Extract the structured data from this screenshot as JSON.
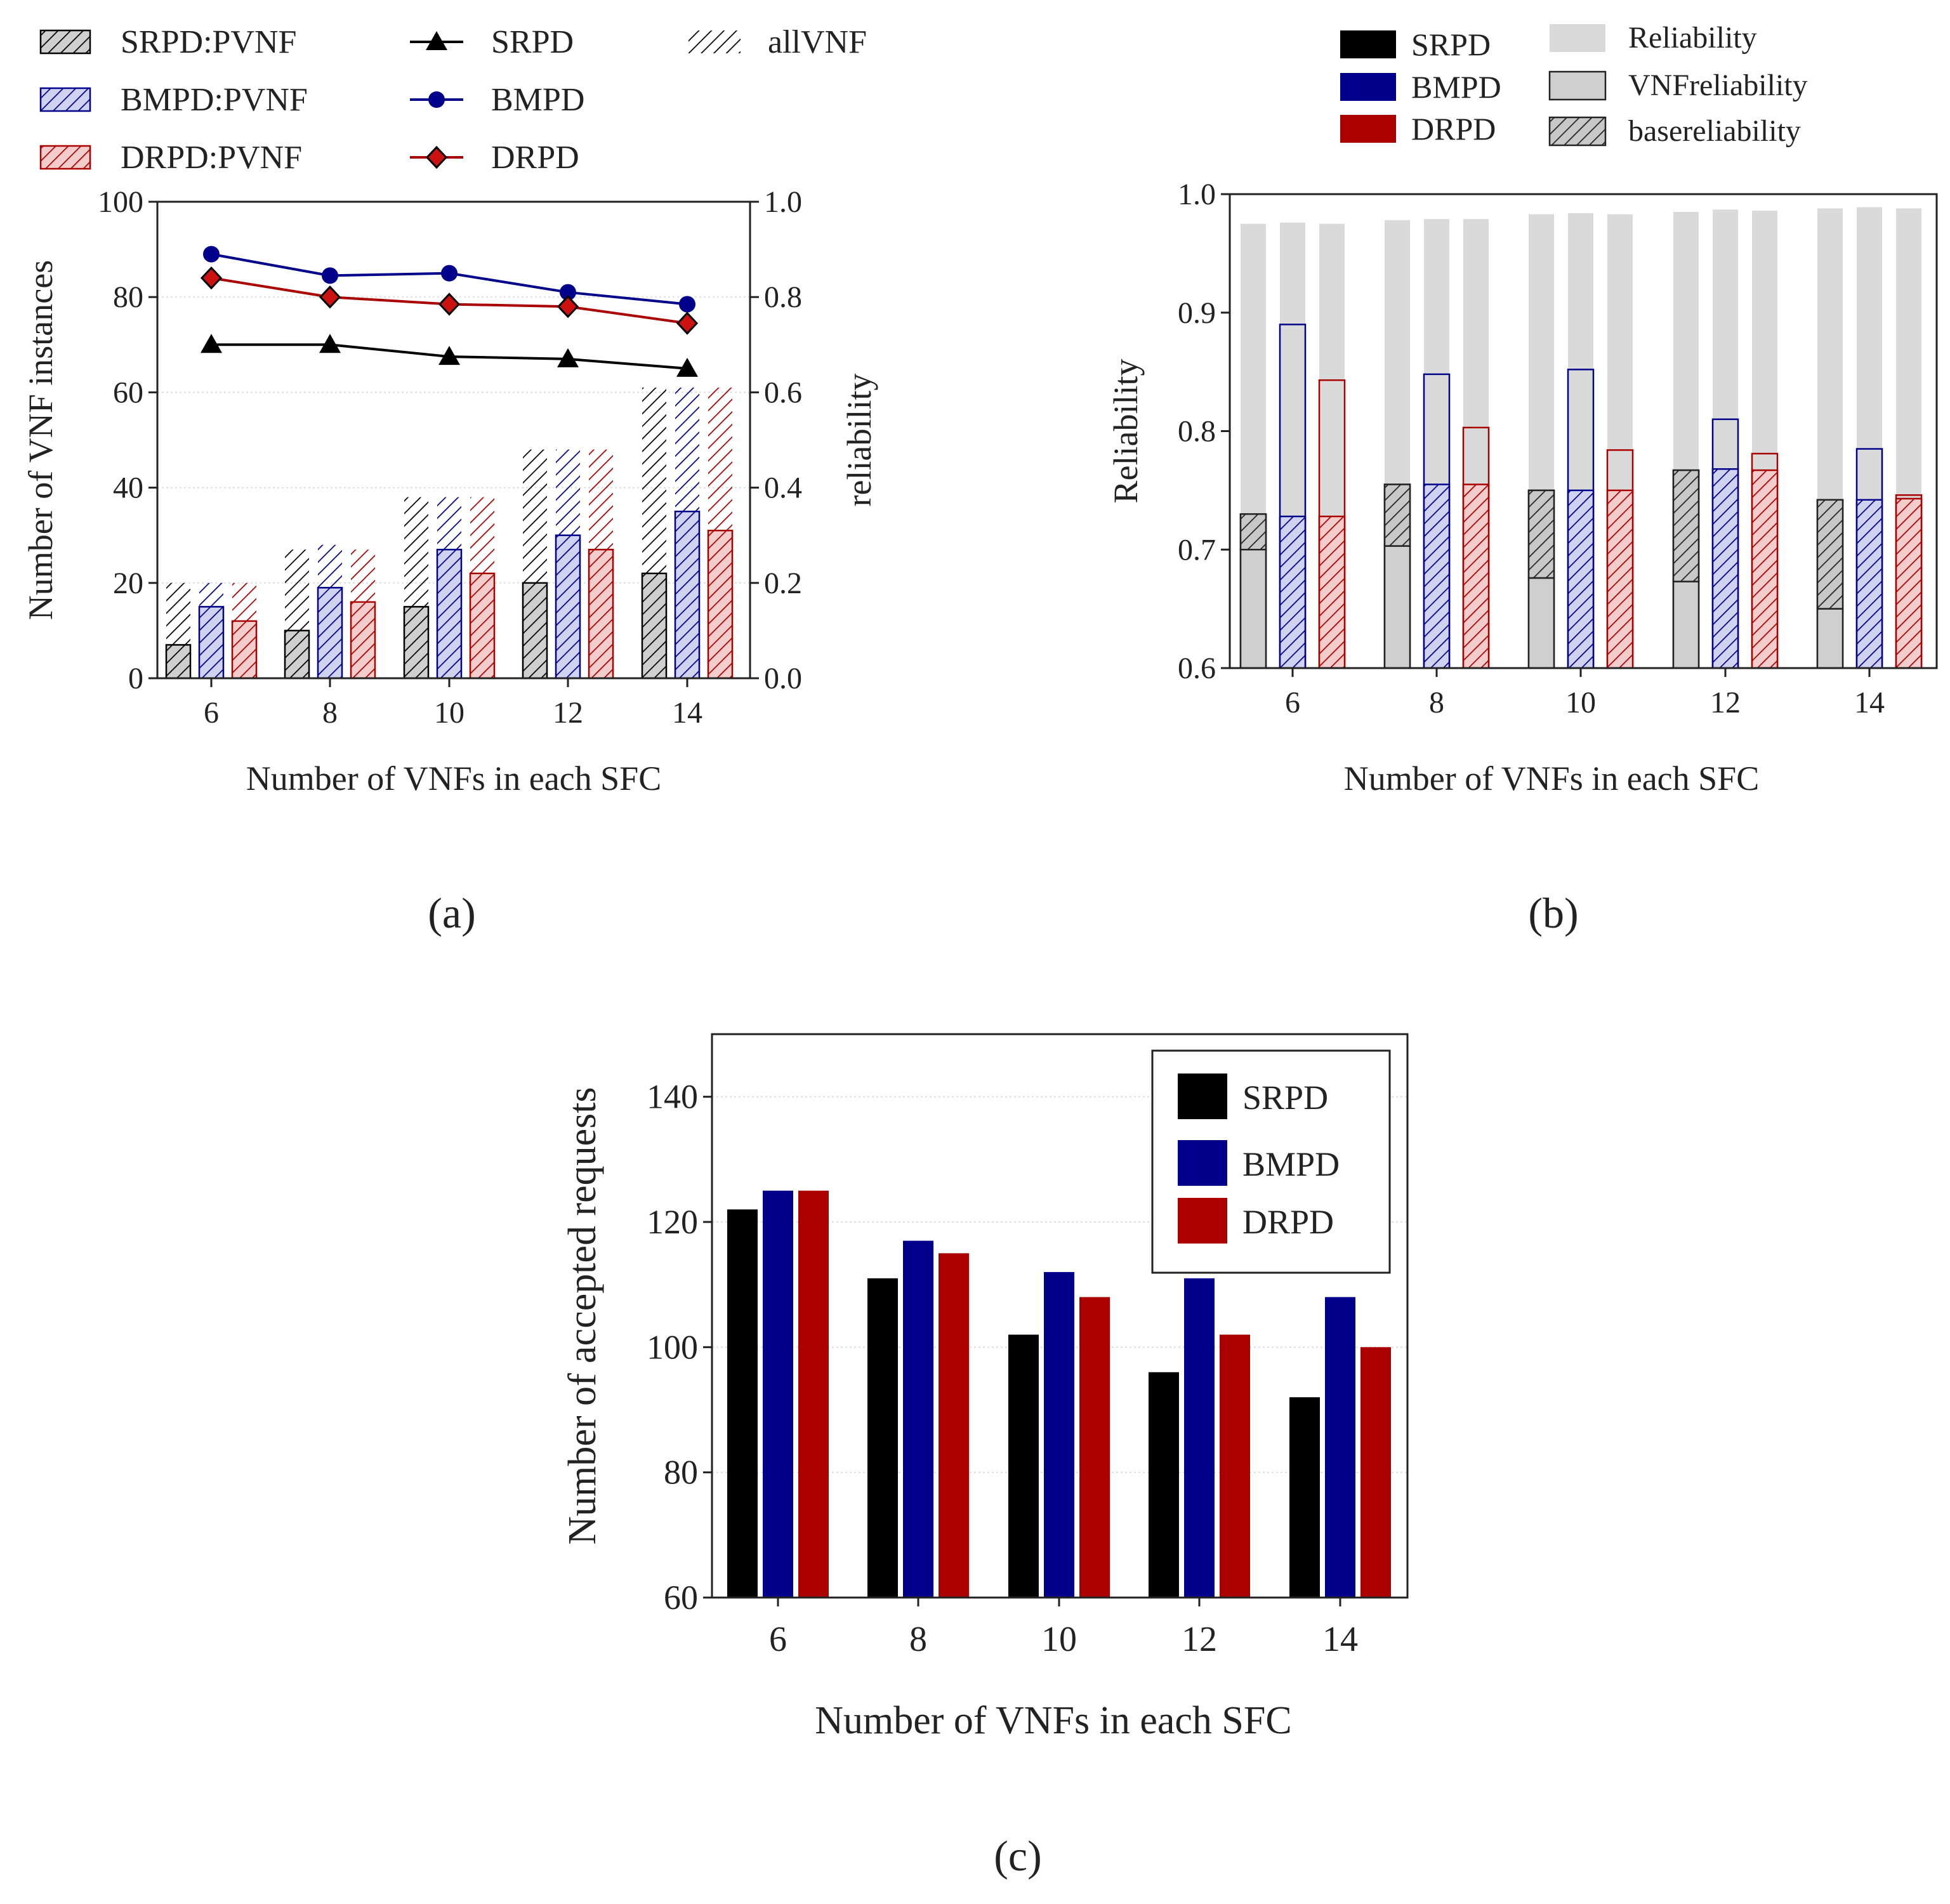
{
  "colors": {
    "srpd": "#000000",
    "bmpd": "#00008b",
    "drpd": "#aa0000",
    "grey_light": "#dadada",
    "grey_mid": "#cccccc",
    "axis": "#222222"
  },
  "panels": {
    "a": {
      "caption": "(a)"
    },
    "b": {
      "caption": "(b)"
    },
    "c": {
      "caption": "(c)"
    }
  },
  "chart_data": [
    {
      "id": "a",
      "type": "bar",
      "title": "",
      "xlabel": "Number of VNFs in each SFC",
      "ylabel": "Number of VNF instances",
      "y2label": "reliability",
      "categories": [
        "6",
        "8",
        "10",
        "12",
        "14"
      ],
      "ylim": [
        0,
        100
      ],
      "yticks": [
        "0",
        "20",
        "40",
        "60",
        "80",
        "100"
      ],
      "y2lim": [
        0.0,
        1.0
      ],
      "y2ticks": [
        "0.0",
        "0.2",
        "0.4",
        "0.6",
        "0.8",
        "1.0"
      ],
      "grid": true,
      "legend": {
        "bars": [
          "SRPD:PVNF",
          "BMPD:PVNF",
          "DRPD:PVNF"
        ],
        "lines": [
          "SRPD",
          "BMPD",
          "DRPD"
        ],
        "all": "allVNF",
        "position": "top"
      },
      "bar_series": [
        {
          "name": "SRPD",
          "allVNF": [
            20,
            27,
            38,
            48,
            61
          ],
          "PVNF": [
            7,
            10,
            15,
            20,
            22
          ]
        },
        {
          "name": "BMPD",
          "allVNF": [
            20,
            28,
            38,
            48,
            61
          ],
          "PVNF": [
            15,
            19,
            27,
            30,
            35
          ]
        },
        {
          "name": "DRPD",
          "allVNF": [
            20,
            27,
            38,
            48,
            61
          ],
          "PVNF": [
            12,
            16,
            22,
            27,
            31
          ]
        }
      ],
      "line_series": [
        {
          "name": "SRPD",
          "marker": "triangle",
          "values": [
            0.7,
            0.7,
            0.675,
            0.67,
            0.65
          ]
        },
        {
          "name": "BMPD",
          "marker": "circle",
          "values": [
            0.89,
            0.845,
            0.85,
            0.81,
            0.785
          ]
        },
        {
          "name": "DRPD",
          "marker": "diamond",
          "values": [
            0.84,
            0.8,
            0.785,
            0.78,
            0.745
          ]
        }
      ]
    },
    {
      "id": "b",
      "type": "bar",
      "title": "",
      "xlabel": "Number of VNFs in each SFC",
      "ylabel": "Reliability",
      "categories": [
        "6",
        "8",
        "10",
        "12",
        "14"
      ],
      "ylim": [
        0.6,
        1.0
      ],
      "yticks": [
        "0.6",
        "0.7",
        "0.8",
        "0.9",
        "1.0"
      ],
      "grid": false,
      "legend": {
        "series": [
          "SRPD",
          "BMPD",
          "DRPD"
        ],
        "kinds": [
          "Reliability",
          "VNFreliability",
          "basereliability"
        ],
        "position": "top"
      },
      "series": [
        {
          "name": "SRPD",
          "reliability": [
            0.975,
            0.978,
            0.983,
            0.985,
            0.988
          ],
          "vnf_reliability": [
            0.73,
            0.755,
            0.75,
            0.767,
            0.742
          ],
          "base_reliability": [
            0.7,
            0.703,
            0.676,
            0.673,
            0.65
          ]
        },
        {
          "name": "BMPD",
          "reliability": [
            0.976,
            0.979,
            0.984,
            0.987,
            0.989
          ],
          "vnf_reliability": [
            0.89,
            0.848,
            0.852,
            0.81,
            0.785
          ],
          "base_reliability": [
            0.728,
            0.755,
            0.75,
            0.768,
            0.742
          ]
        },
        {
          "name": "DRPD",
          "reliability": [
            0.975,
            0.979,
            0.983,
            0.986,
            0.988
          ],
          "vnf_reliability": [
            0.843,
            0.803,
            0.784,
            0.781,
            0.746
          ],
          "base_reliability": [
            0.728,
            0.755,
            0.75,
            0.767,
            0.743
          ]
        }
      ]
    },
    {
      "id": "c",
      "type": "bar",
      "title": "",
      "xlabel": "Number of VNFs in each SFC",
      "ylabel": "Number of accepted requests",
      "categories": [
        "6",
        "8",
        "10",
        "12",
        "14"
      ],
      "ylim": [
        60,
        150
      ],
      "yticks": [
        "60",
        "80",
        "100",
        "120",
        "140"
      ],
      "grid": true,
      "legend": {
        "entries": [
          "SRPD",
          "BMPD",
          "DRPD"
        ],
        "position": "top-right"
      },
      "series": [
        {
          "name": "SRPD",
          "values": [
            122,
            111,
            102,
            96,
            92
          ]
        },
        {
          "name": "BMPD",
          "values": [
            125,
            117,
            112,
            111,
            108
          ]
        },
        {
          "name": "DRPD",
          "values": [
            125,
            115,
            108,
            102,
            100
          ]
        }
      ]
    }
  ]
}
